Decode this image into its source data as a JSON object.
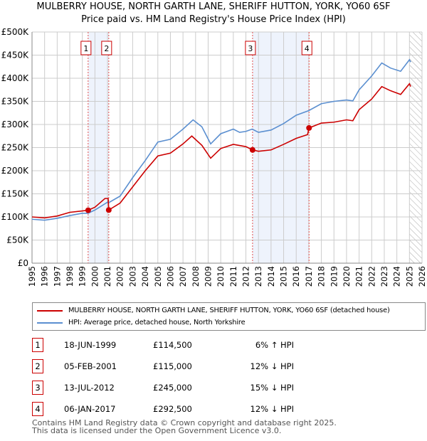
{
  "title": "MULBERRY HOUSE, NORTH GARTH LANE, SHERIFF HUTTON, YORK, YO60 6SF",
  "subtitle": "Price paid vs. HM Land Registry's House Price Index (HPI)",
  "chart_data": {
    "type": "line",
    "title": "MULBERRY HOUSE, NORTH GARTH LANE, SHERIFF HUTTON, YORK, YO60 6SF",
    "subtitle": "Price paid vs. HM Land Registry's House Price Index (HPI)",
    "xlim": [
      1995,
      2026
    ],
    "ylim": [
      0,
      500000
    ],
    "x_ticks": [
      "1995",
      "1996",
      "1997",
      "1998",
      "1999",
      "2000",
      "2001",
      "2002",
      "2003",
      "2004",
      "2005",
      "2006",
      "2007",
      "2008",
      "2009",
      "2010",
      "2011",
      "2012",
      "2013",
      "2014",
      "2015",
      "2016",
      "2017",
      "2018",
      "2019",
      "2020",
      "2021",
      "2022",
      "2023",
      "2024",
      "2025",
      "2026"
    ],
    "y_ticks": [
      {
        "v": 0,
        "l": "£0"
      },
      {
        "v": 50000,
        "l": "£50K"
      },
      {
        "v": 100000,
        "l": "£100K"
      },
      {
        "v": 150000,
        "l": "£150K"
      },
      {
        "v": 200000,
        "l": "£200K"
      },
      {
        "v": 250000,
        "l": "£250K"
      },
      {
        "v": 300000,
        "l": "£300K"
      },
      {
        "v": 350000,
        "l": "£350K"
      },
      {
        "v": 400000,
        "l": "£400K"
      },
      {
        "v": 450000,
        "l": "£450K"
      },
      {
        "v": 500000,
        "l": "£500K"
      }
    ],
    "grid": true,
    "shaded_ranges": [
      [
        1999.46,
        2001.1
      ],
      [
        2012.53,
        2017.02
      ]
    ],
    "forecast_hatch_from": 2025.0,
    "series": [
      {
        "name": "MULBERRY HOUSE, NORTH GARTH LANE, SHERIFF HUTTON, YORK, YO60 6SF (detached house)",
        "color": "#cc0000",
        "x": [
          1995,
          1996,
          1997,
          1998,
          1999,
          1999.46,
          2000,
          2000.8,
          2001.05,
          2001.1,
          2002,
          2003,
          2004,
          2005,
          2006,
          2007,
          2007.7,
          2008.5,
          2009.2,
          2010,
          2011,
          2012,
          2012.53,
          2013,
          2014,
          2015,
          2016,
          2016.9,
          2017.02,
          2018,
          2019,
          2020,
          2020.5,
          2021,
          2022,
          2022.8,
          2023.5,
          2024.3,
          2025,
          2025.1
        ],
        "y": [
          100000,
          98000,
          102000,
          110000,
          113000,
          114500,
          121000,
          140000,
          140000,
          115000,
          130000,
          165000,
          200000,
          232000,
          238000,
          258000,
          275000,
          255000,
          227000,
          248000,
          257000,
          252000,
          245000,
          242000,
          245000,
          257000,
          270000,
          278000,
          292500,
          303000,
          305000,
          310000,
          308000,
          332000,
          355000,
          382000,
          373000,
          365000,
          388000,
          382000
        ]
      },
      {
        "name": "HPI: Average price, detached house, North Yorkshire",
        "color": "#5b8fd0",
        "x": [
          1995,
          1996,
          1997,
          1998,
          1999,
          1999.46,
          2000,
          2001,
          2001.1,
          2002,
          2003,
          2004,
          2005,
          2006,
          2007,
          2007.8,
          2008.5,
          2009.2,
          2010,
          2011,
          2011.5,
          2012,
          2012.5,
          2013,
          2014,
          2015,
          2016,
          2017,
          2018,
          2019,
          2020,
          2020.5,
          2021,
          2022,
          2022.8,
          2023.5,
          2024.3,
          2025,
          2025.1
        ],
        "y": [
          95000,
          93000,
          97000,
          103000,
          108000,
          108000,
          115000,
          132000,
          131000,
          145000,
          185000,
          222000,
          262000,
          268000,
          290000,
          310000,
          295000,
          258000,
          280000,
          290000,
          283000,
          285000,
          290000,
          283000,
          288000,
          302000,
          320000,
          330000,
          345000,
          350000,
          353000,
          351000,
          375000,
          405000,
          433000,
          422000,
          415000,
          440000,
          435000
        ]
      }
    ],
    "sales": [
      {
        "label": "1",
        "x": 1999.46,
        "y": 114500
      },
      {
        "label": "2",
        "x": 2001.1,
        "y": 115000
      },
      {
        "label": "3",
        "x": 2012.53,
        "y": 245000
      },
      {
        "label": "4",
        "x": 2017.02,
        "y": 292500
      }
    ]
  },
  "legend": {
    "property": "MULBERRY HOUSE, NORTH GARTH LANE, SHERIFF HUTTON, YORK, YO60 6SF (detached house)",
    "hpi": "HPI: Average price, detached house, North Yorkshire"
  },
  "transactions": [
    {
      "num": "1",
      "date": "18-JUN-1999",
      "price": "£114,500",
      "delta": "6% ↑ HPI"
    },
    {
      "num": "2",
      "date": "05-FEB-2001",
      "price": "£115,000",
      "delta": "12% ↓ HPI"
    },
    {
      "num": "3",
      "date": "13-JUL-2012",
      "price": "£245,000",
      "delta": "15% ↓ HPI"
    },
    {
      "num": "4",
      "date": "06-JAN-2017",
      "price": "£292,500",
      "delta": "12% ↓ HPI"
    }
  ],
  "footer": {
    "line1": "Contains HM Land Registry data © Crown copyright and database right 2025.",
    "line2": "This data is licensed under the Open Government Licence v3.0."
  }
}
